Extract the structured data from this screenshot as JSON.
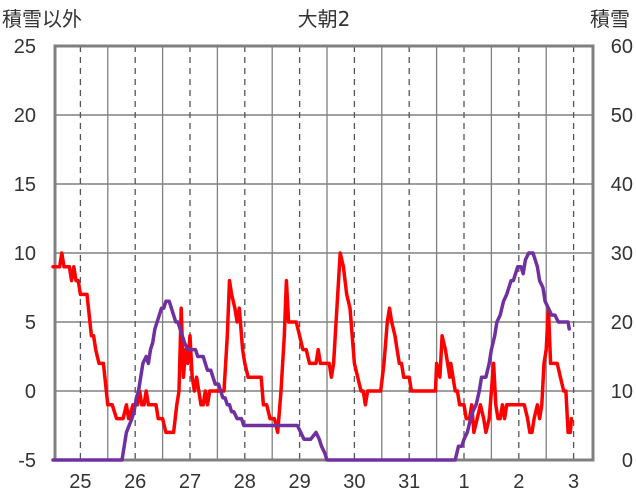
{
  "chart_data": {
    "type": "line",
    "title": "大朝2",
    "y_left_label": "積雪以外",
    "y_right_label": "積雪",
    "y_left_ticks": [
      "25",
      "20",
      "15",
      "10",
      "5",
      "0",
      "-5"
    ],
    "y_right_ticks": [
      "60",
      "50",
      "40",
      "30",
      "20",
      "10",
      "0"
    ],
    "ylim_left": [
      -5,
      25
    ],
    "ylim_right": [
      0,
      60
    ],
    "x_categories": [
      "25",
      "26",
      "27",
      "28",
      "29",
      "30",
      "31",
      "1",
      "2",
      "3"
    ],
    "xlim_days": [
      0,
      10
    ],
    "grid": true,
    "colors": {
      "temperature": "#ff0000",
      "snow": "#7030a0",
      "frame": "#808080",
      "grid": "#808080"
    },
    "series": [
      {
        "axis": "left",
        "color": "#ff0000",
        "points": [
          [
            0.0,
            9
          ],
          [
            0.12,
            9
          ],
          [
            0.16,
            10
          ],
          [
            0.2,
            9
          ],
          [
            0.3,
            9
          ],
          [
            0.34,
            8
          ],
          [
            0.38,
            9
          ],
          [
            0.42,
            8
          ],
          [
            0.46,
            8
          ],
          [
            0.5,
            7
          ],
          [
            0.62,
            7
          ],
          [
            0.7,
            4
          ],
          [
            0.74,
            4
          ],
          [
            0.78,
            3
          ],
          [
            0.84,
            2
          ],
          [
            0.92,
            2
          ],
          [
            1.0,
            -1
          ],
          [
            1.08,
            -1
          ],
          [
            1.16,
            -2
          ],
          [
            1.28,
            -2
          ],
          [
            1.34,
            -1
          ],
          [
            1.38,
            -2
          ],
          [
            1.46,
            -1
          ],
          [
            1.5,
            -1
          ],
          [
            1.54,
            -1
          ],
          [
            1.58,
            0
          ],
          [
            1.62,
            -1
          ],
          [
            1.66,
            -1
          ],
          [
            1.7,
            0
          ],
          [
            1.74,
            -1
          ],
          [
            1.82,
            -1
          ],
          [
            1.88,
            -1
          ],
          [
            1.92,
            -2
          ],
          [
            2.0,
            -2
          ],
          [
            2.06,
            -3
          ],
          [
            2.2,
            -3
          ],
          [
            2.26,
            -1
          ],
          [
            2.3,
            0
          ],
          [
            2.34,
            6
          ],
          [
            2.38,
            1
          ],
          [
            2.42,
            3
          ],
          [
            2.46,
            2
          ],
          [
            2.5,
            4
          ],
          [
            2.54,
            1
          ],
          [
            2.58,
            0
          ],
          [
            2.62,
            1
          ],
          [
            2.66,
            0
          ],
          [
            2.7,
            -1
          ],
          [
            2.74,
            -1
          ],
          [
            2.78,
            0
          ],
          [
            2.82,
            -1
          ],
          [
            2.86,
            0
          ],
          [
            3.12,
            0
          ],
          [
            3.18,
            4
          ],
          [
            3.22,
            8
          ],
          [
            3.26,
            7
          ],
          [
            3.32,
            6
          ],
          [
            3.36,
            5
          ],
          [
            3.4,
            6
          ],
          [
            3.46,
            3
          ],
          [
            3.5,
            2
          ],
          [
            3.56,
            1
          ],
          [
            3.8,
            1
          ],
          [
            3.84,
            -1
          ],
          [
            3.9,
            -1
          ],
          [
            3.96,
            -2
          ],
          [
            4.04,
            -2
          ],
          [
            4.1,
            -3
          ],
          [
            4.16,
            0
          ],
          [
            4.22,
            4
          ],
          [
            4.26,
            8
          ],
          [
            4.3,
            5
          ],
          [
            4.44,
            5
          ],
          [
            4.5,
            4
          ],
          [
            4.56,
            3
          ],
          [
            4.62,
            3
          ],
          [
            4.68,
            2
          ],
          [
            4.8,
            2
          ],
          [
            4.84,
            3
          ],
          [
            4.88,
            2
          ],
          [
            5.04,
            2
          ],
          [
            5.08,
            1
          ],
          [
            5.12,
            2
          ],
          [
            5.18,
            6
          ],
          [
            5.24,
            10
          ],
          [
            5.3,
            9
          ],
          [
            5.36,
            7
          ],
          [
            5.42,
            6
          ],
          [
            5.46,
            4
          ],
          [
            5.5,
            2
          ],
          [
            5.56,
            1
          ],
          [
            5.62,
            0
          ],
          [
            5.66,
            0
          ],
          [
            5.7,
            -1
          ],
          [
            5.74,
            0
          ],
          [
            5.98,
            0
          ],
          [
            6.04,
            2
          ],
          [
            6.1,
            5
          ],
          [
            6.14,
            6
          ],
          [
            6.18,
            5
          ],
          [
            6.24,
            4
          ],
          [
            6.28,
            3
          ],
          [
            6.32,
            2
          ],
          [
            6.36,
            2
          ],
          [
            6.4,
            1
          ],
          [
            6.5,
            1
          ],
          [
            6.54,
            0
          ],
          [
            6.64,
            0
          ],
          [
            6.92,
            0
          ],
          [
            6.98,
            0
          ],
          [
            7.0,
            2
          ],
          [
            7.06,
            1
          ],
          [
            7.1,
            4
          ],
          [
            7.16,
            3
          ],
          [
            7.2,
            2
          ],
          [
            7.24,
            1
          ],
          [
            7.26,
            2
          ],
          [
            7.34,
            0
          ],
          [
            7.38,
            0
          ],
          [
            7.42,
            -1
          ],
          [
            7.5,
            -1
          ],
          [
            7.54,
            -2
          ],
          [
            7.6,
            -2
          ],
          [
            7.64,
            -1
          ],
          [
            7.68,
            -3
          ],
          [
            7.74,
            -2
          ],
          [
            7.8,
            -1
          ],
          [
            7.86,
            -2
          ],
          [
            7.9,
            -3
          ],
          [
            7.96,
            -2
          ],
          [
            8.0,
            0
          ],
          [
            8.04,
            2
          ],
          [
            8.08,
            -1
          ],
          [
            8.12,
            -2
          ],
          [
            8.16,
            -2
          ],
          [
            8.2,
            -1
          ],
          [
            8.24,
            -2
          ],
          [
            8.28,
            -1
          ],
          [
            8.6,
            -1
          ],
          [
            8.66,
            -2
          ],
          [
            8.7,
            -3
          ],
          [
            8.74,
            -3
          ],
          [
            8.78,
            -2
          ],
          [
            8.84,
            -1
          ],
          [
            8.88,
            -2
          ],
          [
            8.92,
            -1
          ],
          [
            8.96,
            2
          ],
          [
            9.0,
            3
          ],
          [
            9.04,
            6
          ],
          [
            9.08,
            2
          ],
          [
            9.2,
            2
          ],
          [
            9.26,
            1
          ],
          [
            9.32,
            0
          ],
          [
            9.36,
            0
          ],
          [
            9.4,
            -3
          ],
          [
            9.44,
            -3
          ],
          [
            9.46,
            -2
          ]
        ]
      },
      {
        "axis": "right",
        "color": "#7030a0",
        "points": [
          [
            0.0,
            0
          ],
          [
            0.7,
            0
          ],
          [
            1.2,
            0
          ],
          [
            1.26,
            0
          ],
          [
            1.34,
            4
          ],
          [
            1.44,
            6
          ],
          [
            1.48,
            7
          ],
          [
            1.52,
            9
          ],
          [
            1.56,
            10
          ],
          [
            1.6,
            12
          ],
          [
            1.64,
            14
          ],
          [
            1.7,
            15
          ],
          [
            1.74,
            14
          ],
          [
            1.78,
            16
          ],
          [
            1.82,
            17
          ],
          [
            1.86,
            19
          ],
          [
            1.9,
            20
          ],
          [
            1.94,
            21
          ],
          [
            1.98,
            22
          ],
          [
            2.02,
            22
          ],
          [
            2.06,
            23
          ],
          [
            2.12,
            23
          ],
          [
            2.16,
            22
          ],
          [
            2.2,
            21
          ],
          [
            2.24,
            20
          ],
          [
            2.28,
            20
          ],
          [
            2.32,
            19
          ],
          [
            2.36,
            18
          ],
          [
            2.4,
            17
          ],
          [
            2.46,
            16
          ],
          [
            2.6,
            16
          ],
          [
            2.64,
            15
          ],
          [
            2.7,
            15
          ],
          [
            2.74,
            15
          ],
          [
            2.78,
            14
          ],
          [
            2.82,
            13
          ],
          [
            2.88,
            13
          ],
          [
            2.92,
            12
          ],
          [
            2.96,
            11
          ],
          [
            3.02,
            11
          ],
          [
            3.06,
            10
          ],
          [
            3.1,
            9
          ],
          [
            3.14,
            9
          ],
          [
            3.18,
            8
          ],
          [
            3.22,
            8
          ],
          [
            3.26,
            7
          ],
          [
            3.3,
            7
          ],
          [
            3.36,
            6
          ],
          [
            3.4,
            6
          ],
          [
            3.44,
            6
          ],
          [
            3.48,
            5
          ],
          [
            3.52,
            5
          ],
          [
            3.56,
            5
          ],
          [
            3.72,
            5
          ],
          [
            3.82,
            5
          ],
          [
            3.92,
            5
          ],
          [
            4.02,
            5
          ],
          [
            4.14,
            5
          ],
          [
            4.24,
            5
          ],
          [
            4.34,
            5
          ],
          [
            4.46,
            5
          ],
          [
            4.52,
            4
          ],
          [
            4.58,
            3
          ],
          [
            4.7,
            3
          ],
          [
            4.8,
            4
          ],
          [
            4.86,
            3
          ],
          [
            4.9,
            2
          ],
          [
            4.96,
            1
          ],
          [
            5.0,
            0
          ],
          [
            5.04,
            0
          ],
          [
            7.34,
            0
          ],
          [
            7.4,
            2
          ],
          [
            7.46,
            2
          ],
          [
            7.5,
            3
          ],
          [
            7.56,
            4
          ],
          [
            7.62,
            6
          ],
          [
            7.66,
            7
          ],
          [
            7.72,
            8
          ],
          [
            7.78,
            10
          ],
          [
            7.82,
            12
          ],
          [
            7.86,
            12
          ],
          [
            7.9,
            12
          ],
          [
            7.96,
            14
          ],
          [
            8.0,
            16
          ],
          [
            8.06,
            18
          ],
          [
            8.1,
            20
          ],
          [
            8.16,
            21
          ],
          [
            8.22,
            23
          ],
          [
            8.28,
            24
          ],
          [
            8.32,
            25
          ],
          [
            8.36,
            26
          ],
          [
            8.4,
            26
          ],
          [
            8.44,
            27
          ],
          [
            8.48,
            28
          ],
          [
            8.54,
            28
          ],
          [
            8.58,
            27
          ],
          [
            8.62,
            29
          ],
          [
            8.68,
            30
          ],
          [
            8.76,
            30
          ],
          [
            8.8,
            29
          ],
          [
            8.84,
            28
          ],
          [
            8.88,
            26
          ],
          [
            8.94,
            25
          ],
          [
            8.98,
            23
          ],
          [
            9.04,
            22
          ],
          [
            9.1,
            21
          ],
          [
            9.16,
            21
          ],
          [
            9.22,
            20
          ],
          [
            9.28,
            20
          ],
          [
            9.34,
            20
          ],
          [
            9.4,
            20
          ],
          [
            9.42,
            19
          ]
        ]
      }
    ]
  }
}
